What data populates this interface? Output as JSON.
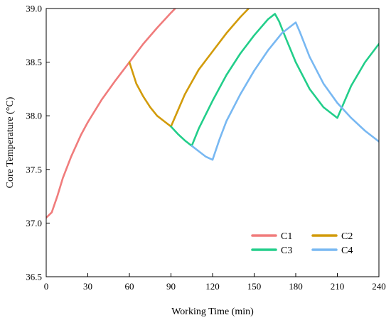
{
  "chart_data": {
    "type": "line",
    "xlabel": "Working Time (min)",
    "ylabel": "Core Temperature (°C)",
    "xlim": [
      0,
      240
    ],
    "ylim": [
      36.5,
      39.0
    ],
    "xticks": [
      0,
      30,
      60,
      90,
      120,
      150,
      180,
      210,
      240
    ],
    "xtick_labels": [
      "0",
      "30",
      "60",
      "90",
      "120",
      "150",
      "180",
      "210",
      "240"
    ],
    "yticks": [
      36.5,
      37.0,
      37.5,
      38.0,
      38.5,
      39.0
    ],
    "ytick_labels": [
      "36.5",
      "37.0",
      "37.5",
      "38.0",
      "38.5",
      "39.0"
    ],
    "grid": false,
    "legend_position": "bottom-right",
    "series": [
      {
        "name": "C1",
        "color": "#F07C7C",
        "x": [
          0,
          4,
          8,
          12,
          18,
          25,
          30,
          40,
          50,
          60,
          70,
          80,
          90,
          93
        ],
        "y": [
          37.05,
          37.1,
          37.25,
          37.42,
          37.62,
          37.82,
          37.94,
          38.15,
          38.33,
          38.5,
          38.67,
          38.82,
          38.96,
          39.0
        ]
      },
      {
        "name": "C2",
        "color": "#D29B0A",
        "x": [
          60,
          65,
          70,
          75,
          80,
          85,
          90,
          100,
          110,
          120,
          130,
          140,
          146
        ],
        "y": [
          38.5,
          38.3,
          38.18,
          38.08,
          38.0,
          37.95,
          37.9,
          38.2,
          38.43,
          38.6,
          38.77,
          38.92,
          39.0
        ]
      },
      {
        "name": "C3",
        "color": "#22CE8A",
        "x": [
          90,
          95,
          100,
          105,
          110,
          120,
          130,
          140,
          150,
          160,
          165,
          168,
          172,
          180,
          190,
          200,
          210,
          220,
          230,
          240
        ],
        "y": [
          37.9,
          37.83,
          37.77,
          37.72,
          37.88,
          38.14,
          38.38,
          38.58,
          38.75,
          38.9,
          38.95,
          38.88,
          38.75,
          38.5,
          38.25,
          38.08,
          37.98,
          38.28,
          38.5,
          38.67
        ]
      },
      {
        "name": "C4",
        "color": "#78B8F2",
        "x": [
          105,
          110,
          115,
          120,
          125,
          130,
          140,
          150,
          160,
          170,
          180,
          183,
          190,
          200,
          210,
          220,
          230,
          240
        ],
        "y": [
          37.72,
          37.67,
          37.62,
          37.59,
          37.78,
          37.95,
          38.2,
          38.42,
          38.61,
          38.77,
          38.87,
          38.78,
          38.55,
          38.3,
          38.12,
          37.98,
          37.86,
          37.76
        ]
      }
    ]
  }
}
